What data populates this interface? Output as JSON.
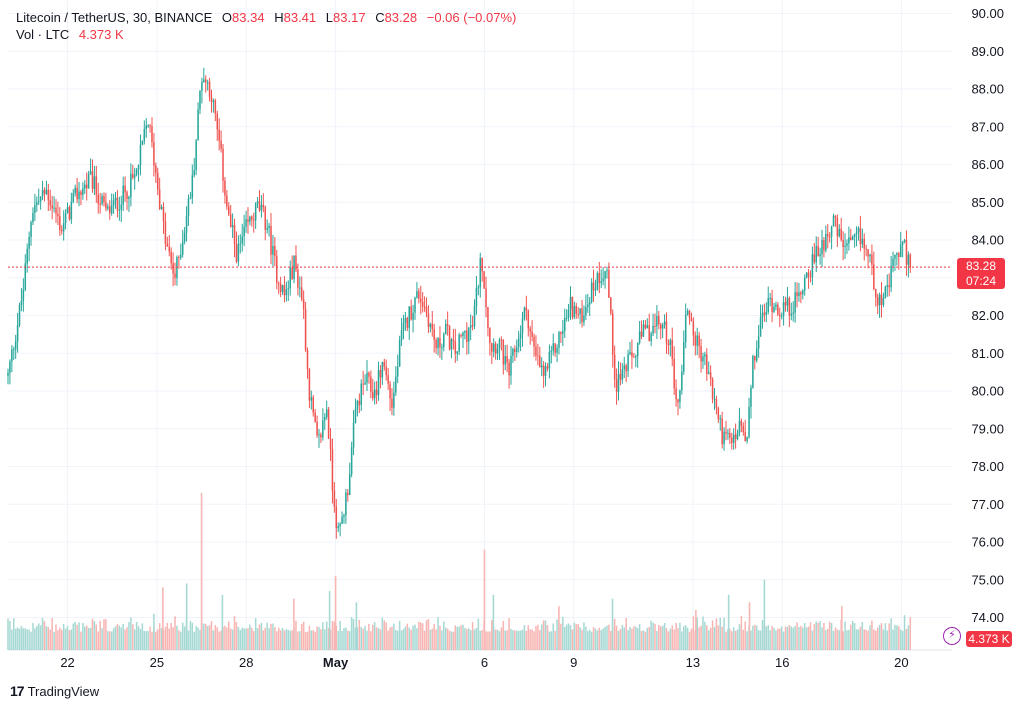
{
  "header": {
    "symbol": "Litecoin / TetherUS, 30, BINANCE",
    "open_label": "O",
    "open": "83.34",
    "high_label": "H",
    "high": "83.41",
    "low_label": "L",
    "low": "83.17",
    "close_label": "C",
    "close": "83.28",
    "change": "−0.06 (−0.07%)",
    "vol_label": "Vol · LTC",
    "vol_value": "4.373 K"
  },
  "price_tag": {
    "price": "83.28",
    "countdown": "07:24"
  },
  "volume_tag": "4.373 K",
  "brand": {
    "logo": "17",
    "name": "TradingView"
  },
  "colors": {
    "up": "#26a69a",
    "down": "#ef5350",
    "up_vol": "#a7d9d4",
    "down_vol": "#f7b6b4",
    "last_price": "#f23645",
    "grid": "#f0f3fa",
    "axis_text": "#131722"
  },
  "chart_data": {
    "type": "candlestick",
    "interval": "30m",
    "ylim": [
      73.6,
      90.3
    ],
    "y_ticks": [
      "90.00",
      "89.00",
      "88.00",
      "87.00",
      "86.00",
      "85.00",
      "84.00",
      "83.00",
      "82.00",
      "81.00",
      "80.00",
      "79.00",
      "78.00",
      "77.00",
      "76.00",
      "75.00",
      "74.00"
    ],
    "x_ticks": [
      {
        "label": "22",
        "day": 22.0
      },
      {
        "label": "25",
        "day": 25.0
      },
      {
        "label": "28",
        "day": 28.0
      },
      {
        "label": "May",
        "day": 31.0
      },
      {
        "label": "6",
        "day": 36.0
      },
      {
        "label": "9",
        "day": 39.0
      },
      {
        "label": "13",
        "day": 43.0
      },
      {
        "label": "16",
        "day": 46.0
      },
      {
        "label": "20",
        "day": 50.0
      }
    ],
    "xlim_days": [
      20.0,
      51.7
    ],
    "last_price": 83.28,
    "anchor_closes": [
      [
        20.0,
        80.4
      ],
      [
        20.5,
        82.6
      ],
      [
        20.8,
        84.8
      ],
      [
        21.3,
        85.3
      ],
      [
        21.8,
        84.3
      ],
      [
        22.3,
        85.2
      ],
      [
        22.8,
        85.6
      ],
      [
        23.3,
        84.7
      ],
      [
        23.8,
        85.1
      ],
      [
        24.3,
        85.7
      ],
      [
        24.7,
        87.2
      ],
      [
        25.0,
        85.6
      ],
      [
        25.3,
        83.9
      ],
      [
        25.6,
        83.0
      ],
      [
        25.9,
        84.2
      ],
      [
        26.2,
        85.6
      ],
      [
        26.5,
        88.4
      ],
      [
        26.8,
        88.0
      ],
      [
        27.1,
        86.5
      ],
      [
        27.4,
        84.6
      ],
      [
        27.7,
        83.6
      ],
      [
        28.0,
        84.3
      ],
      [
        28.4,
        84.9
      ],
      [
        28.7,
        84.4
      ],
      [
        29.0,
        83.2
      ],
      [
        29.3,
        82.5
      ],
      [
        29.6,
        83.4
      ],
      [
        29.9,
        82.4
      ],
      [
        30.1,
        80.1
      ],
      [
        30.4,
        78.5
      ],
      [
        30.7,
        79.6
      ],
      [
        30.9,
        77.5
      ],
      [
        31.1,
        76.1
      ],
      [
        31.4,
        77.4
      ],
      [
        31.7,
        79.6
      ],
      [
        32.0,
        80.3
      ],
      [
        32.3,
        79.9
      ],
      [
        32.6,
        80.8
      ],
      [
        32.9,
        79.6
      ],
      [
        33.2,
        81.4
      ],
      [
        33.5,
        82.1
      ],
      [
        33.8,
        82.6
      ],
      [
        34.1,
        82.0
      ],
      [
        34.4,
        81.1
      ],
      [
        34.7,
        81.6
      ],
      [
        35.0,
        81.0
      ],
      [
        35.3,
        81.5
      ],
      [
        35.6,
        81.7
      ],
      [
        35.9,
        83.6
      ],
      [
        36.2,
        81.2
      ],
      [
        36.5,
        81.3
      ],
      [
        36.8,
        80.4
      ],
      [
        37.1,
        81.3
      ],
      [
        37.4,
        82.2
      ],
      [
        37.7,
        80.9
      ],
      [
        38.0,
        80.4
      ],
      [
        38.3,
        81.0
      ],
      [
        38.6,
        81.6
      ],
      [
        38.9,
        82.3
      ],
      [
        39.2,
        81.9
      ],
      [
        39.5,
        82.5
      ],
      [
        39.8,
        83.0
      ],
      [
        40.1,
        83.3
      ],
      [
        40.4,
        80.2
      ],
      [
        40.7,
        80.6
      ],
      [
        41.0,
        80.9
      ],
      [
        41.3,
        81.5
      ],
      [
        41.6,
        81.6
      ],
      [
        41.9,
        81.8
      ],
      [
        42.2,
        81.4
      ],
      [
        42.5,
        79.5
      ],
      [
        42.8,
        82.3
      ],
      [
        43.1,
        81.3
      ],
      [
        43.4,
        80.8
      ],
      [
        43.7,
        79.8
      ],
      [
        44.0,
        78.8
      ],
      [
        44.3,
        78.6
      ],
      [
        44.6,
        79.1
      ],
      [
        44.8,
        78.5
      ],
      [
        45.0,
        80.6
      ],
      [
        45.3,
        81.9
      ],
      [
        45.6,
        82.4
      ],
      [
        45.9,
        82.2
      ],
      [
        46.2,
        82.2
      ],
      [
        46.5,
        82.4
      ],
      [
        46.8,
        83.1
      ],
      [
        47.1,
        83.5
      ],
      [
        47.4,
        84.0
      ],
      [
        47.7,
        84.5
      ],
      [
        48.0,
        83.9
      ],
      [
        48.3,
        83.8
      ],
      [
        48.6,
        84.1
      ],
      [
        48.9,
        83.6
      ],
      [
        49.2,
        82.5
      ],
      [
        49.5,
        82.5
      ],
      [
        49.8,
        83.6
      ],
      [
        50.1,
        83.8
      ],
      [
        50.3,
        83.28
      ]
    ],
    "volume_spikes": [
      [
        24.9,
        74.1
      ],
      [
        25.2,
        74.8
      ],
      [
        26.0,
        74.9
      ],
      [
        26.5,
        77.3
      ],
      [
        27.2,
        74.6
      ],
      [
        29.6,
        74.5
      ],
      [
        30.8,
        74.7
      ],
      [
        31.0,
        75.1
      ],
      [
        31.7,
        74.4
      ],
      [
        36.0,
        75.8
      ],
      [
        36.3,
        74.6
      ],
      [
        38.5,
        74.3
      ],
      [
        40.3,
        74.5
      ],
      [
        43.1,
        74.2
      ],
      [
        44.2,
        74.6
      ],
      [
        44.9,
        74.4
      ],
      [
        45.4,
        75.0
      ],
      [
        48.0,
        74.3
      ]
    ],
    "volume_baseline": 73.62,
    "volume_typical_top": 73.95
  }
}
